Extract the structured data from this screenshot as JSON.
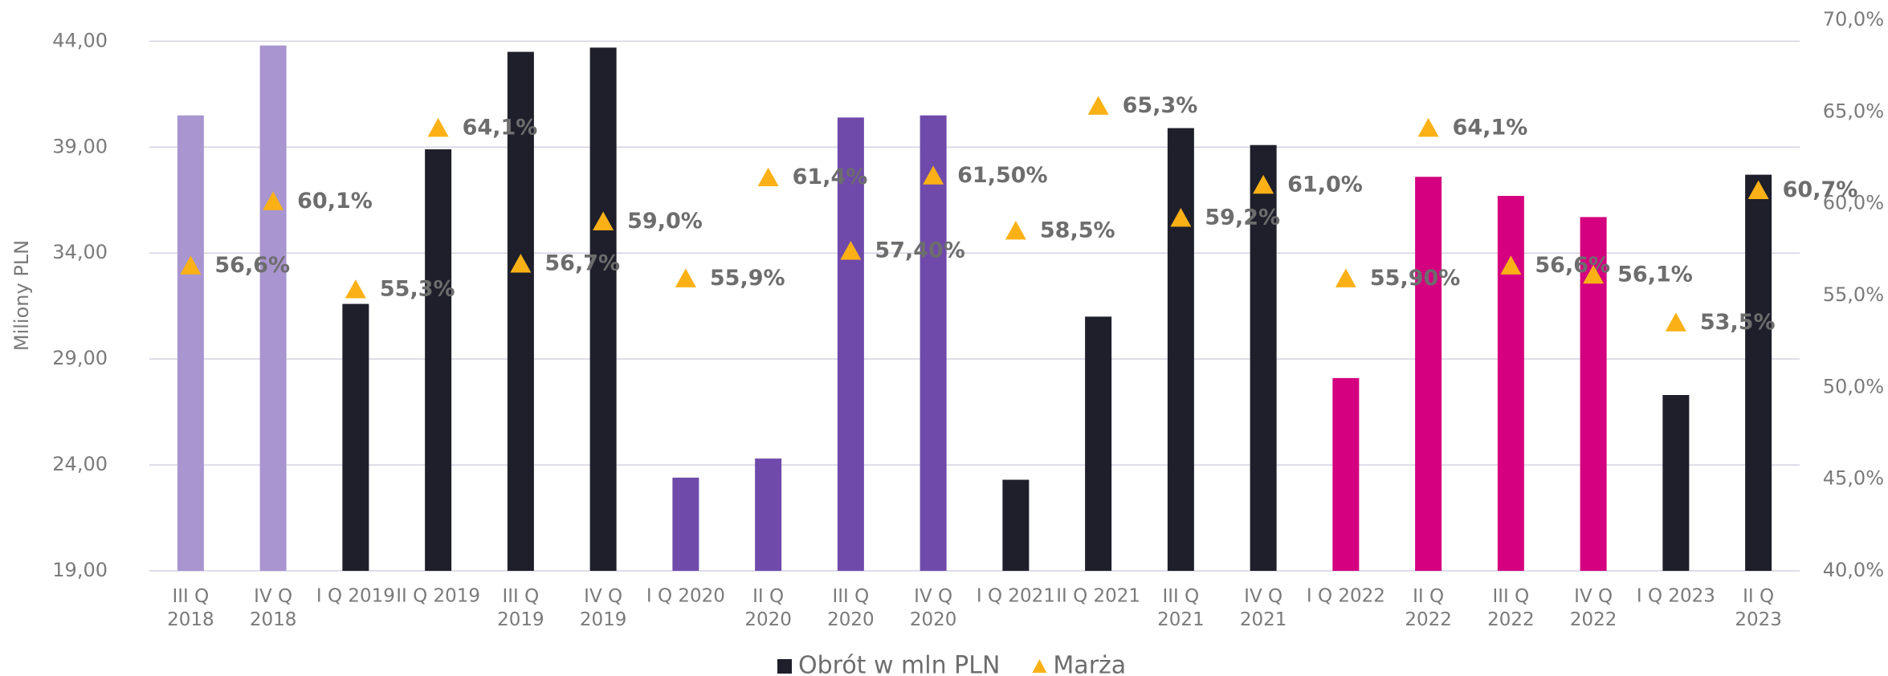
{
  "chart_data": {
    "type": "bar",
    "y_label": "Miliony PLN",
    "categories": [
      "III Q\n2018",
      "IV Q\n2018",
      "I Q 2019",
      "II Q 2019",
      "III Q\n2019",
      "IV Q\n2019",
      "I Q 2020",
      "II Q\n2020",
      "III Q\n2020",
      "IV Q\n2020",
      "I Q 2021",
      "II Q 2021",
      "III Q\n2021",
      "IV Q\n2021",
      "I Q 2022",
      "II Q\n2022",
      "III Q\n2022",
      "IV Q\n2022",
      "I Q 2023",
      "II Q\n2023"
    ],
    "ylim": [
      19,
      45
    ],
    "yticks": [
      {
        "value": 19,
        "label": "19,00"
      },
      {
        "value": 24,
        "label": "24,00"
      },
      {
        "value": 29,
        "label": "29,00"
      },
      {
        "value": 34,
        "label": "34,00"
      },
      {
        "value": 39,
        "label": "39,00"
      },
      {
        "value": 44,
        "label": "44,00"
      }
    ],
    "y2lim": [
      40,
      70
    ],
    "y2ticks": [
      {
        "value": 40,
        "label": "40,0%"
      },
      {
        "value": 45,
        "label": "45,0%"
      },
      {
        "value": 50,
        "label": "50,0%"
      },
      {
        "value": 55,
        "label": "55,0%"
      },
      {
        "value": 60,
        "label": "60,0%"
      },
      {
        "value": 65,
        "label": "65,0%"
      },
      {
        "value": 70,
        "label": "70,0%"
      }
    ],
    "grid": true,
    "legend": "bottom",
    "series": [
      {
        "name": "Obrót w mln PLN",
        "type": "bar",
        "color": "#1e1f2b",
        "colors": [
          "#a995d0",
          "#a995d0",
          "#1e1f2b",
          "#1e1f2b",
          "#1e1f2b",
          "#1e1f2b",
          "#6f4aab",
          "#6f4aab",
          "#6f4aab",
          "#6f4aab",
          "#1e1f2b",
          "#1e1f2b",
          "#1e1f2b",
          "#1e1f2b",
          "#d4007f",
          "#d4007f",
          "#d4007f",
          "#d4007f",
          "#1e1f2b",
          "#1e1f2b"
        ],
        "values": [
          40.5,
          43.8,
          31.6,
          38.9,
          43.5,
          43.7,
          23.4,
          24.3,
          40.4,
          40.5,
          23.3,
          31.0,
          39.9,
          39.1,
          28.1,
          37.6,
          36.7,
          35.7,
          27.3,
          37.7
        ]
      },
      {
        "name": "Marża",
        "type": "marker",
        "axis": "y2",
        "color": "#fbb116",
        "values": [
          56.6,
          60.1,
          55.3,
          64.1,
          56.7,
          59.0,
          55.9,
          61.4,
          57.4,
          61.5,
          58.5,
          65.3,
          59.2,
          61.0,
          55.9,
          64.1,
          56.6,
          56.1,
          53.5,
          60.7
        ],
        "value_labels": [
          "56,6%",
          "60,1%",
          "55,3%",
          "64,1%",
          "56,7%",
          "59,0%",
          "55,9%",
          "61,4%",
          "57,40%",
          "61,50%",
          "58,5%",
          "65,3%",
          "59,2%",
          "61,0%",
          "55,90%",
          "64,1%",
          "56,6%",
          "56,1%",
          "53,5%",
          "60,7%"
        ]
      }
    ]
  }
}
